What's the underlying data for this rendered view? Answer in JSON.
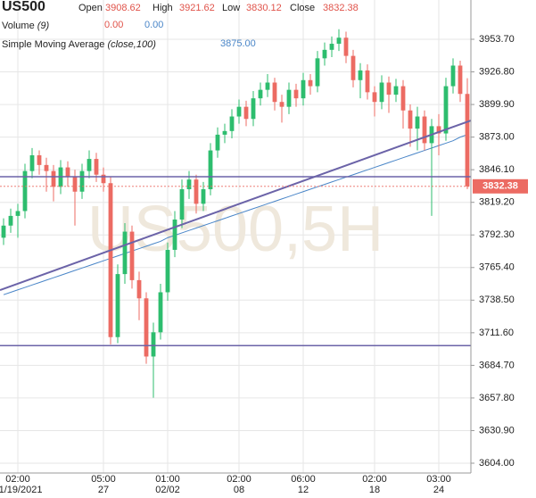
{
  "chart_data": {
    "type": "candlestick",
    "symbol": "US500",
    "watermark": "US500,5H",
    "ohlc_labels": {
      "open": "Open",
      "high": "High",
      "low": "Low",
      "close": "Close"
    },
    "volume": {
      "name": "Volume",
      "param": "(9)",
      "values": [
        "0.00",
        "0.00"
      ]
    },
    "sma": {
      "name": "Simple Moving Average",
      "param": "(close,100)",
      "value_label": "3875.00",
      "color": "#4a86c8",
      "values": [
        3743,
        3745,
        3747,
        3749,
        3751,
        3753,
        3755,
        3757,
        3759,
        3761,
        3763,
        3765,
        3767,
        3769,
        3771,
        3773,
        3775,
        3777,
        3779,
        3781,
        3783,
        3785,
        3787,
        3790,
        3792,
        3794,
        3796,
        3798,
        3800,
        3802,
        3804,
        3806,
        3808,
        3810,
        3812,
        3814,
        3816,
        3818,
        3820,
        3822,
        3824,
        3826,
        3828,
        3830,
        3832,
        3834,
        3836,
        3838,
        3840,
        3842,
        3844,
        3846,
        3848,
        3850,
        3852,
        3854,
        3856,
        3858,
        3860,
        3862,
        3864,
        3866,
        3868,
        3870,
        3873,
        3875
      ]
    },
    "categories": [
      null,
      null,
      "02:00",
      null,
      null,
      null,
      null,
      null,
      null,
      null,
      null,
      null,
      null,
      null,
      "05:00",
      null,
      null,
      null,
      null,
      null,
      null,
      null,
      null,
      "01:00",
      null,
      null,
      null,
      null,
      null,
      null,
      null,
      null,
      null,
      "02:00",
      null,
      null,
      null,
      null,
      null,
      null,
      null,
      null,
      "06:00",
      null,
      null,
      null,
      null,
      null,
      null,
      null,
      null,
      null,
      "02:00",
      null,
      null,
      null,
      null,
      null,
      null,
      null,
      null,
      "03:00",
      null,
      null,
      null,
      null
    ],
    "dates": [
      null,
      null,
      "01/19/2021",
      null,
      null,
      null,
      null,
      null,
      null,
      null,
      null,
      null,
      null,
      null,
      "27",
      null,
      null,
      null,
      null,
      null,
      null,
      null,
      null,
      "02/02",
      null,
      null,
      null,
      null,
      null,
      null,
      null,
      null,
      null,
      "08",
      null,
      null,
      null,
      null,
      null,
      null,
      null,
      null,
      "12",
      null,
      null,
      null,
      null,
      null,
      null,
      null,
      null,
      null,
      "18",
      null,
      null,
      null,
      null,
      null,
      null,
      null,
      null,
      "24",
      null,
      null,
      null,
      null
    ],
    "open": [
      3790,
      3800,
      3808,
      3812,
      3845,
      3858,
      3850,
      3845,
      3832,
      3848,
      3840,
      3828,
      3845,
      3855,
      3842,
      3835,
      3708,
      3760,
      3795,
      3755,
      3740,
      3692,
      3712,
      3745,
      3780,
      3805,
      3830,
      3838,
      3818,
      3830,
      3862,
      3875,
      3878,
      3890,
      3898,
      3888,
      3905,
      3912,
      3918,
      3902,
      3898,
      3912,
      3905,
      3920,
      3915,
      3938,
      3945,
      3950,
      3955,
      3940,
      3920,
      3928,
      3910,
      3902,
      3918,
      3908,
      3915,
      3895,
      3880,
      3890,
      3868,
      3882,
      3876,
      3915,
      3932,
      3908.62
    ],
    "high": [
      3806,
      3814,
      3818,
      3851,
      3864,
      3862,
      3856,
      3850,
      3854,
      3853,
      3846,
      3851,
      3862,
      3860,
      3848,
      3840,
      3768,
      3802,
      3800,
      3762,
      3745,
      3720,
      3752,
      3786,
      3812,
      3838,
      3845,
      3842,
      3836,
      3868,
      3881,
      3884,
      3896,
      3904,
      3903,
      3911,
      3918,
      3925,
      3922,
      3908,
      3918,
      3917,
      3926,
      3925,
      3944,
      3951,
      3956,
      3962,
      3960,
      3945,
      3934,
      3933,
      3915,
      3924,
      3923,
      3921,
      3920,
      3900,
      3898,
      3895,
      3888,
      3892,
      3922,
      3938,
      3936,
      3921.62
    ],
    "low": [
      3784,
      3794,
      3790,
      3806,
      3839,
      3842,
      3828,
      3820,
      3826,
      3832,
      3800,
      3822,
      3839,
      3836,
      3828,
      3702,
      3703,
      3752,
      3748,
      3722,
      3686,
      3658,
      3706,
      3738,
      3774,
      3798,
      3822,
      3810,
      3812,
      3825,
      3856,
      3868,
      3872,
      3884,
      3882,
      3882,
      3899,
      3906,
      3895,
      3885,
      3892,
      3898,
      3899,
      3908,
      3910,
      3932,
      3939,
      3944,
      3934,
      3914,
      3905,
      3904,
      3890,
      3896,
      3893,
      3902,
      3880,
      3865,
      3862,
      3862,
      3808,
      3858,
      3870,
      3909,
      3902,
      3830.12
    ],
    "close": [
      3800,
      3808,
      3812,
      3845,
      3858,
      3850,
      3845,
      3832,
      3848,
      3840,
      3828,
      3845,
      3855,
      3842,
      3835,
      3708,
      3760,
      3795,
      3755,
      3740,
      3692,
      3712,
      3745,
      3780,
      3805,
      3830,
      3838,
      3818,
      3830,
      3862,
      3875,
      3878,
      3890,
      3898,
      3888,
      3905,
      3912,
      3918,
      3902,
      3898,
      3912,
      3905,
      3920,
      3915,
      3938,
      3945,
      3950,
      3955,
      3940,
      3920,
      3928,
      3910,
      3902,
      3918,
      3908,
      3915,
      3895,
      3880,
      3890,
      3868,
      3882,
      3876,
      3915,
      3932,
      3908.62,
      3832.38
    ],
    "up_color": "#2dbd6e",
    "down_color": "#ec6b63",
    "horizontal_lines": [
      3840.3,
      3701
    ],
    "trend_line": [
      3746.8,
      3886.7
    ],
    "line_color": "#6b63a8",
    "ylim": [
      3595.9,
      3986.1
    ],
    "yticks": [
      {
        "value": 3953.7,
        "label": "3953.70"
      },
      {
        "value": 3926.8,
        "label": "3926.80"
      },
      {
        "value": 3899.9,
        "label": "3899.90"
      },
      {
        "value": 3873,
        "label": "3873.00"
      },
      {
        "value": 3846.1,
        "label": "3846.10"
      },
      {
        "value": 3819.2,
        "label": "3819.20"
      },
      {
        "value": 3792.3,
        "label": "3792.30"
      },
      {
        "value": 3765.4,
        "label": "3765.40"
      },
      {
        "value": 3738.5,
        "label": "3738.50"
      },
      {
        "value": 3711.6,
        "label": "3711.60"
      },
      {
        "value": 3684.7,
        "label": "3684.70"
      },
      {
        "value": 3657.8,
        "label": "3657.80"
      },
      {
        "value": 3630.9,
        "label": "3630.90"
      },
      {
        "value": 3604,
        "label": "3604.00"
      }
    ],
    "grid": true
  }
}
